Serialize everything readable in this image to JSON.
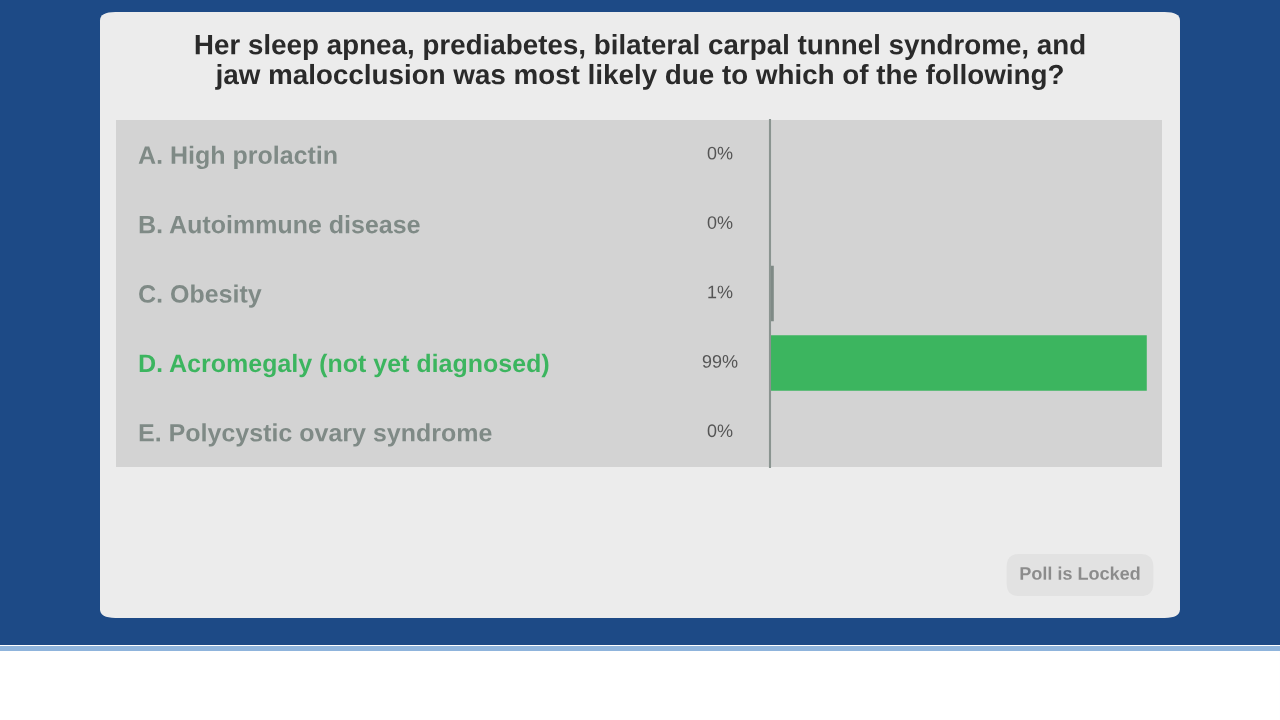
{
  "chart_data": {
    "type": "bar",
    "orientation": "horizontal",
    "title": "Her sleep apnea, prediabetes, bilateral carpal tunnel syndrome, and\njaw malocclusion was most likely due to which of the following?",
    "categories": [
      "A. High prolactin",
      "B. Autoimmune disease",
      "C. Obesity",
      "D. Acromegaly (not yet diagnosed)",
      "E. Polycystic ovary syndrome"
    ],
    "values": [
      0,
      0,
      1,
      99,
      0
    ],
    "value_labels": [
      "0%",
      "0%",
      "1%",
      "99%",
      "0%"
    ],
    "colors": [
      "#7f8a86",
      "#7f8a86",
      "#7f8a86",
      "#3cb55f",
      "#7f8a86"
    ],
    "xlim": [
      0,
      103
    ],
    "tick_labels": "y",
    "grid": false,
    "legend": false,
    "annotations": [
      "Poll is Locked"
    ]
  }
}
